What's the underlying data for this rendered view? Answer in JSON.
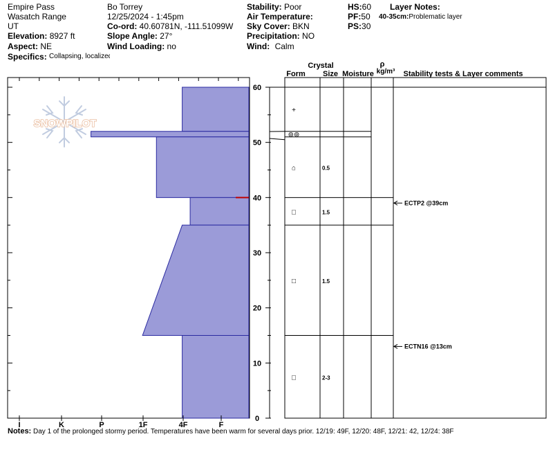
{
  "header": {
    "location": "Empire Pass",
    "range": "Wasatch Range",
    "state": "UT",
    "elevation_label": "Elevation:",
    "elevation": "8927 ft",
    "aspect_label": "Aspect:",
    "aspect": "NE",
    "specifics_label": "Specifics:",
    "specifics": "Collapsing, localized",
    "observer": "Bo Torrey",
    "datetime": "12/25/2024 - 1:45pm",
    "coord_label": "Co-ord:",
    "coord": "40.60781N, -111.51099W",
    "slope_label": "Slope Angle:",
    "slope": "27°",
    "wind_loading_label": "Wind Loading:",
    "wind_loading": "no",
    "stability_label": "Stability:",
    "stability": "Poor",
    "air_temp_label": "Air Temperature:",
    "air_temp": "",
    "sky_label": "Sky Cover:",
    "sky": "BKN",
    "precip_label": "Precipitation:",
    "precip": "NO",
    "wind_label": "Wind:",
    "wind": "Calm",
    "hs_label": "HS:",
    "hs": "60",
    "pf_label": "PF:",
    "pf": "50",
    "ps_label": "PS:",
    "ps": "30",
    "layer_notes_label": "Layer Notes:",
    "layer_note_range": "40-35cm:",
    "layer_note_text": "Problematic layer"
  },
  "logo_text": "SNOWPILOT",
  "columns": {
    "crystal": "Crystal",
    "form": "Form",
    "size": "Size",
    "moisture": "Moisture",
    "rho": "ρ",
    "density_unit": "kg/m³",
    "comments": "Stability tests & Layer comments"
  },
  "colors": {
    "fill": "#9b9bd8",
    "stroke": "#2a2aa0",
    "marker": "#c00000",
    "grid": "#000000"
  },
  "notes_label": "Notes:",
  "notes_text": "Day 1 of the prolonged stormy period. Temperatures have been warm for several days prior. 12/19: 49F, 12/20: 48F, 12/21: 42, 12/24: 38F",
  "chart_data": {
    "type": "snow-profile",
    "hardness_scale": [
      "I",
      "K",
      "P",
      "1F",
      "4F",
      "F"
    ],
    "hardness_order": [
      "F",
      "4F",
      "1F",
      "P",
      "K",
      "I"
    ],
    "ylim": [
      0,
      60
    ],
    "y_ticks": [
      0,
      10,
      20,
      30,
      40,
      50,
      60
    ],
    "hardness_profile": [
      {
        "top": 60,
        "bottom": 52,
        "hardness_top": 1.0,
        "hardness_bottom": 1.0
      },
      {
        "top": 52,
        "bottom": 51,
        "hardness_top": 3.3,
        "hardness_bottom": 3.3
      },
      {
        "top": 51,
        "bottom": 40,
        "hardness_top": 1.65,
        "hardness_bottom": 1.65
      },
      {
        "top": 40,
        "bottom": 35,
        "hardness_top": 0.8,
        "hardness_bottom": 0.8
      },
      {
        "top": 35,
        "bottom": 15,
        "hardness_top": 1.0,
        "hardness_bottom": 2.0
      },
      {
        "top": 15,
        "bottom": 0,
        "hardness_top": 1.0,
        "hardness_bottom": 1.0
      }
    ],
    "problem_marker_depth": 40,
    "layers": [
      {
        "top": 60,
        "bottom": 52,
        "form": "+",
        "size": ""
      },
      {
        "top": 52,
        "bottom": 51,
        "form": "⊚⊚",
        "size": ""
      },
      {
        "top": 51,
        "bottom": 40,
        "form": "⌂",
        "size": "0.5"
      },
      {
        "top": 40,
        "bottom": 35,
        "form": "□",
        "size": "1.5"
      },
      {
        "top": 35,
        "bottom": 15,
        "form": "□",
        "size": "1.5"
      },
      {
        "top": 15,
        "bottom": 0,
        "form": "□",
        "size": "2-3"
      }
    ],
    "tests": [
      {
        "depth": 39,
        "label": "ECTP2 @39cm"
      },
      {
        "depth": 13,
        "label": "ECTN16 @13cm"
      }
    ]
  }
}
